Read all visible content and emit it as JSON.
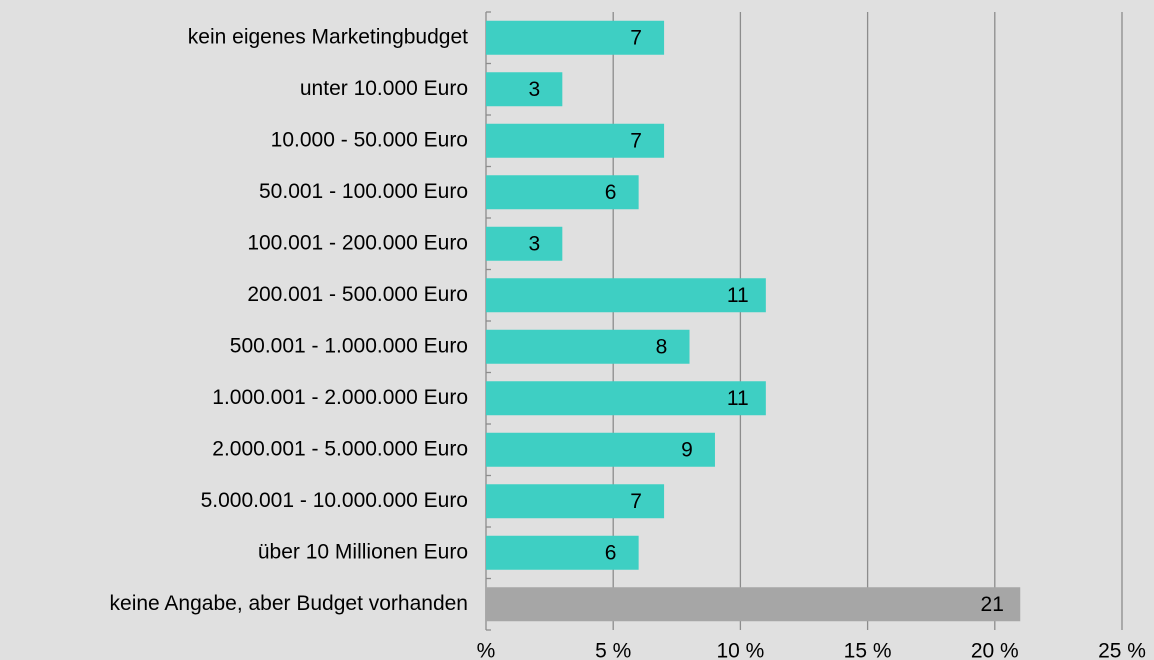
{
  "chart_data": {
    "type": "barh",
    "categories": [
      "kein eigenes Marketingbudget",
      "unter 10.000 Euro",
      "10.000 - 50.000 Euro",
      "50.001 - 100.000 Euro",
      "100.001 - 200.000 Euro",
      "200.001 - 500.000 Euro",
      "500.001 - 1.000.000 Euro",
      "1.000.001 - 2.000.000 Euro",
      "2.000.001 - 5.000.000 Euro",
      "5.000.001 - 10.000.000 Euro",
      "über 10 Millionen Euro",
      "keine Angabe, aber Budget vorhanden"
    ],
    "values": [
      7,
      3,
      7,
      6,
      3,
      11,
      8,
      11,
      9,
      7,
      6,
      21
    ],
    "colors": [
      "#3ecfc3",
      "#3ecfc3",
      "#3ecfc3",
      "#3ecfc3",
      "#3ecfc3",
      "#3ecfc3",
      "#3ecfc3",
      "#3ecfc3",
      "#3ecfc3",
      "#3ecfc3",
      "#3ecfc3",
      "#a6a6a6"
    ],
    "xlim": [
      0,
      25
    ],
    "xticks": [
      {
        "value": 0,
        "label": "%"
      },
      {
        "value": 5,
        "label": "5 %"
      },
      {
        "value": 10,
        "label": "10 %"
      },
      {
        "value": 15,
        "label": "15 %"
      },
      {
        "value": 20,
        "label": "20 %"
      },
      {
        "value": 25,
        "label": "25 %"
      }
    ],
    "grid": true
  }
}
